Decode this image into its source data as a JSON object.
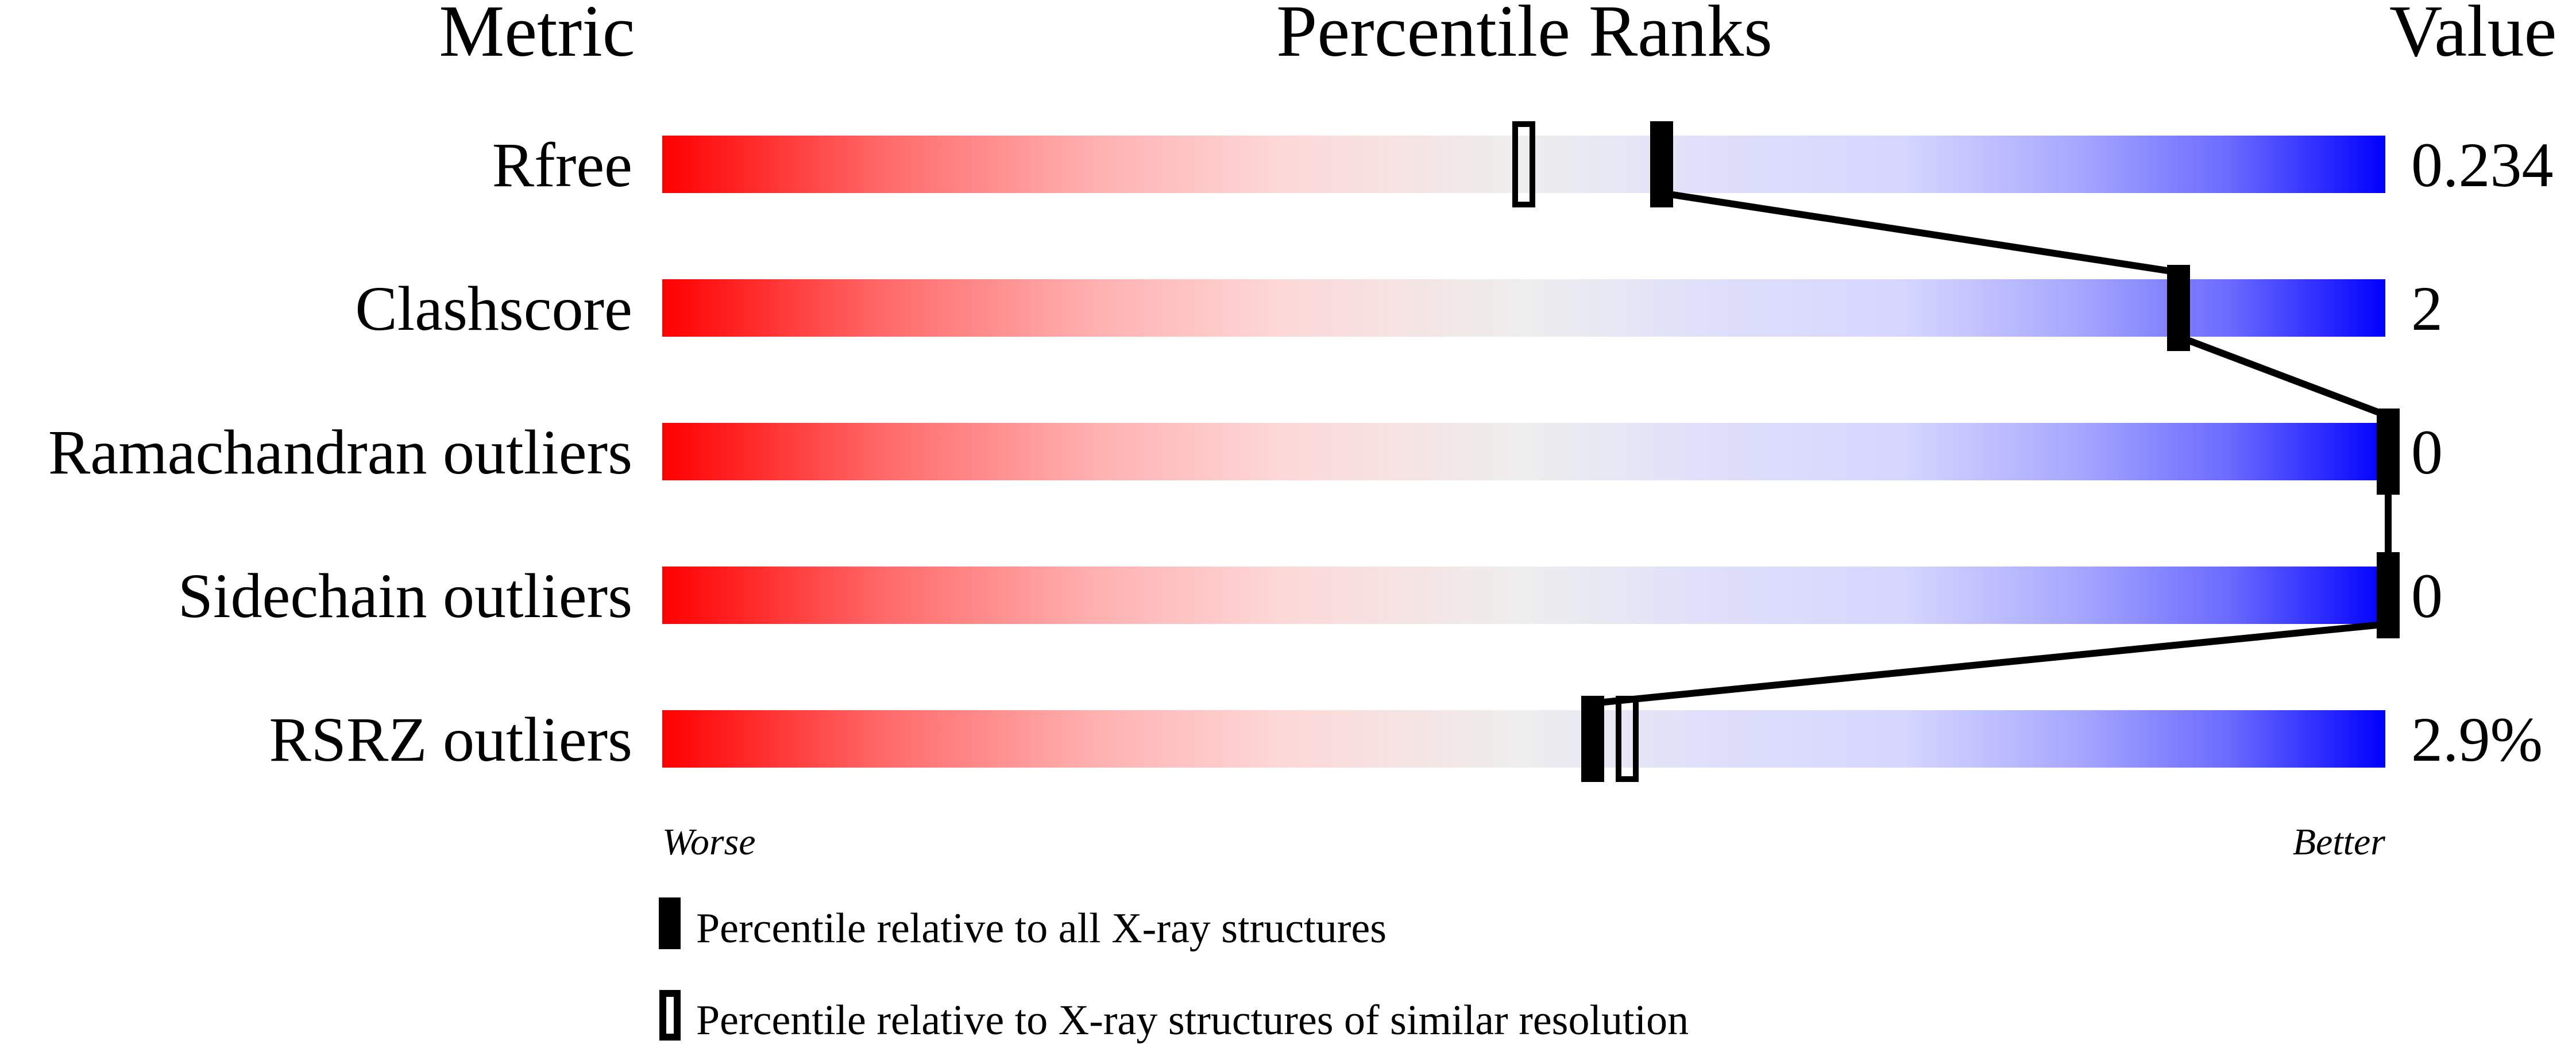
{
  "chart_data": {
    "type": "percentile-slider",
    "headers": {
      "metric": "Metric",
      "percentile": "Percentile Ranks",
      "value": "Value"
    },
    "xlim": [
      0,
      100
    ],
    "axis_labels": {
      "left": "Worse",
      "right": "Better"
    },
    "gradient_colors": {
      "worse": "#ff0000",
      "middle": "#eeeeee",
      "better": "#0000ff"
    },
    "metrics": [
      {
        "name": "Rfree",
        "value": "0.234",
        "percentile_all": 58,
        "percentile_similar": 50
      },
      {
        "name": "Clashscore",
        "value": "2",
        "percentile_all": 88,
        "percentile_similar": 88
      },
      {
        "name": "Ramachandran outliers",
        "value": "0",
        "percentile_all": 100,
        "percentile_similar": 100
      },
      {
        "name": "Sidechain outliers",
        "value": "0",
        "percentile_all": 100,
        "percentile_similar": 100
      },
      {
        "name": "RSRZ outliers",
        "value": "2.9%",
        "percentile_all": 54,
        "percentile_similar": 56
      }
    ],
    "legend": [
      {
        "marker": "filled",
        "label": "Percentile relative to all X-ray structures"
      },
      {
        "marker": "open",
        "label": "Percentile relative to X-ray structures of similar resolution"
      }
    ]
  }
}
